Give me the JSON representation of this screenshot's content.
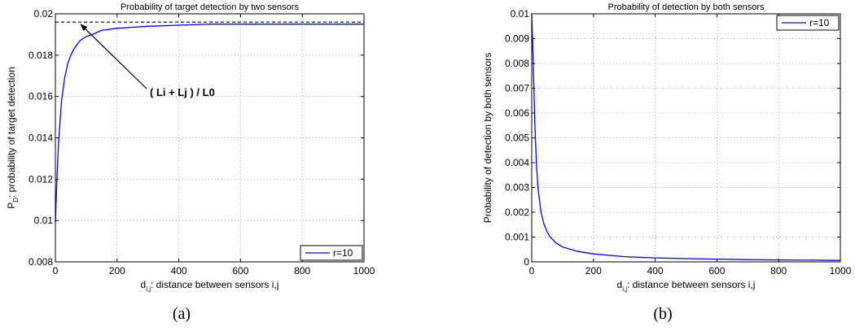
{
  "figure": {
    "caption_a": "(a)",
    "caption_b": "(b)"
  },
  "chart_data": [
    {
      "type": "line",
      "title": "Probability of target detection by two sensors",
      "xlabel_main": "d",
      "xlabel_sub": "i,j",
      "xlabel_rest": ": distance between sensors i,j",
      "ylabel_main": "P",
      "ylabel_sub": "D",
      "ylabel_rest": ": probability of target detection",
      "xlim": [
        0,
        1000
      ],
      "ylim": [
        0.008,
        0.02
      ],
      "xticks": [
        0,
        200,
        400,
        600,
        800,
        1000
      ],
      "xtick_labels": [
        "0",
        "200",
        "400",
        "600",
        "800",
        "1000"
      ],
      "yticks": [
        0.008,
        0.01,
        0.012,
        0.014,
        0.016,
        0.018,
        0.02
      ],
      "ytick_labels": [
        "0.008",
        "0.01",
        "0.012",
        "0.014",
        "0.016",
        "0.018",
        "0.02"
      ],
      "grid": true,
      "legend_position": "bottom-right",
      "series": [
        {
          "name": "r=10",
          "color": "#0000ff",
          "x": [
            0,
            5,
            10,
            20,
            30,
            40,
            50,
            60,
            70,
            80,
            100,
            120,
            150,
            200,
            250,
            300,
            400,
            500,
            600,
            700,
            800,
            900,
            1000
          ],
          "y": [
            0.0099,
            0.012,
            0.0137,
            0.0158,
            0.0169,
            0.0176,
            0.018,
            0.0183,
            0.0185,
            0.0187,
            0.0189,
            0.019,
            0.0192,
            0.0193,
            0.01935,
            0.0194,
            0.01945,
            0.0195,
            0.0195,
            0.0195,
            0.0195,
            0.0195,
            0.0195
          ]
        }
      ],
      "reference_line": {
        "y": 0.0196,
        "style": "dashed",
        "color": "#000000"
      },
      "annotation": {
        "text": "( Li + Lj ) / L0",
        "points_to_x": 80
      }
    },
    {
      "type": "line",
      "title": "Probability of detection by both sensors",
      "xlabel_main": "d",
      "xlabel_sub": "i,j",
      "xlabel_rest": ": distance between sensors i,j",
      "ylabel": "Probability of detection by both sensors",
      "xlim": [
        0,
        1000
      ],
      "ylim": [
        0,
        0.01
      ],
      "xticks": [
        0,
        200,
        400,
        600,
        800,
        1000
      ],
      "xtick_labels": [
        "0",
        "200",
        "400",
        "600",
        "800",
        "1000"
      ],
      "yticks": [
        0,
        0.001,
        0.002,
        0.003,
        0.004,
        0.005,
        0.006,
        0.007,
        0.008,
        0.009,
        0.01
      ],
      "ytick_labels": [
        "0",
        "0.001",
        "0.002",
        "0.003",
        "0.004",
        "0.005",
        "0.006",
        "0.007",
        "0.008",
        "0.009",
        "0.01"
      ],
      "grid": true,
      "legend_position": "top-right",
      "series": [
        {
          "name": "r=10",
          "color": "#0000ff",
          "x": [
            0,
            5,
            10,
            15,
            20,
            30,
            40,
            50,
            60,
            80,
            100,
            150,
            200,
            300,
            400,
            500,
            600,
            700,
            800,
            900,
            1000
          ],
          "y": [
            0.01,
            0.008,
            0.0056,
            0.004,
            0.003,
            0.002,
            0.0015,
            0.0012,
            0.001,
            0.00075,
            0.0006,
            0.00042,
            0.00032,
            0.00021,
            0.00016,
            0.00013,
            0.00011,
            9e-05,
            8e-05,
            7e-05,
            6e-05
          ]
        }
      ]
    }
  ]
}
